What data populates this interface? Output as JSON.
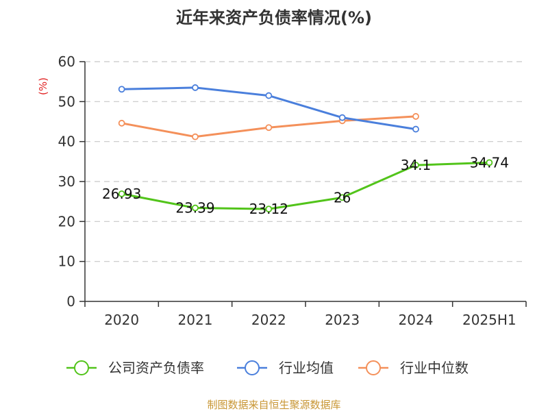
{
  "title": "近年来资产负债率情况(%)",
  "source": "制图数据来自恒生聚源数据库",
  "chart_data": {
    "type": "line",
    "title": "近年来资产负债率情况(%)",
    "categories": [
      "2020",
      "2021",
      "2022",
      "2023",
      "2024",
      "2025H1"
    ],
    "ylabel": "(%)",
    "ylim": [
      0,
      60
    ],
    "yticks": [
      0,
      10,
      20,
      30,
      40,
      50,
      60
    ],
    "grid": true,
    "legend_position": "bottom",
    "series": [
      {
        "name": "公司资产负债率",
        "color": "#52c41a",
        "values": [
          26.93,
          23.39,
          23.12,
          26,
          34.1,
          34.74
        ],
        "labels": [
          "26.93",
          "23.39",
          "23.12",
          "26",
          "34.1",
          "34.74"
        ]
      },
      {
        "name": "行业均值",
        "color": "#4a7fdc",
        "values": [
          53.1,
          53.5,
          51.5,
          46.0,
          43.1,
          null
        ]
      },
      {
        "name": "行业中位数",
        "color": "#f4905a",
        "values": [
          44.6,
          41.2,
          43.5,
          45.2,
          46.3,
          null
        ]
      }
    ]
  }
}
